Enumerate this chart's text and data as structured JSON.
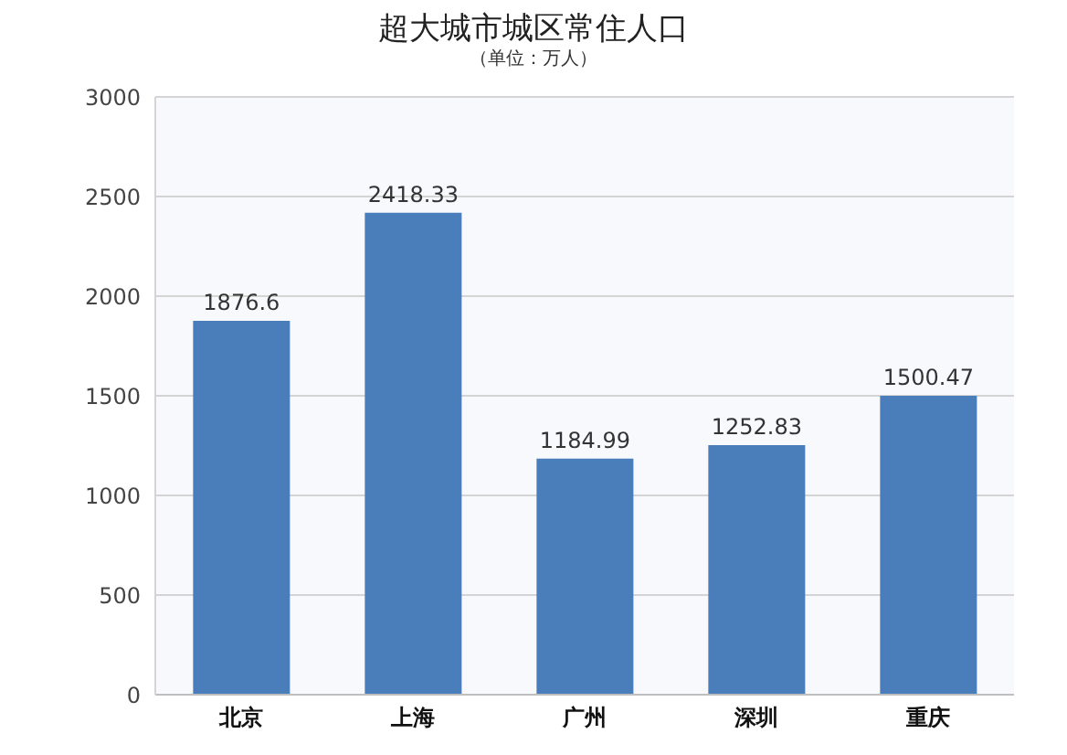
{
  "chart_data": {
    "type": "bar",
    "title": "超大城市城区常住人口",
    "subtitle": "（单位：万人）",
    "categories": [
      "北京",
      "上海",
      "广州",
      "深圳",
      "重庆"
    ],
    "values": [
      1876.6,
      2418.33,
      1184.99,
      1252.83,
      1500.47
    ],
    "color": "#4a7ebb",
    "ylim": [
      0,
      3000
    ],
    "yticks": [
      0,
      500,
      1000,
      1500,
      2000,
      2500,
      3000
    ],
    "grid": "y",
    "data_labels": true
  }
}
